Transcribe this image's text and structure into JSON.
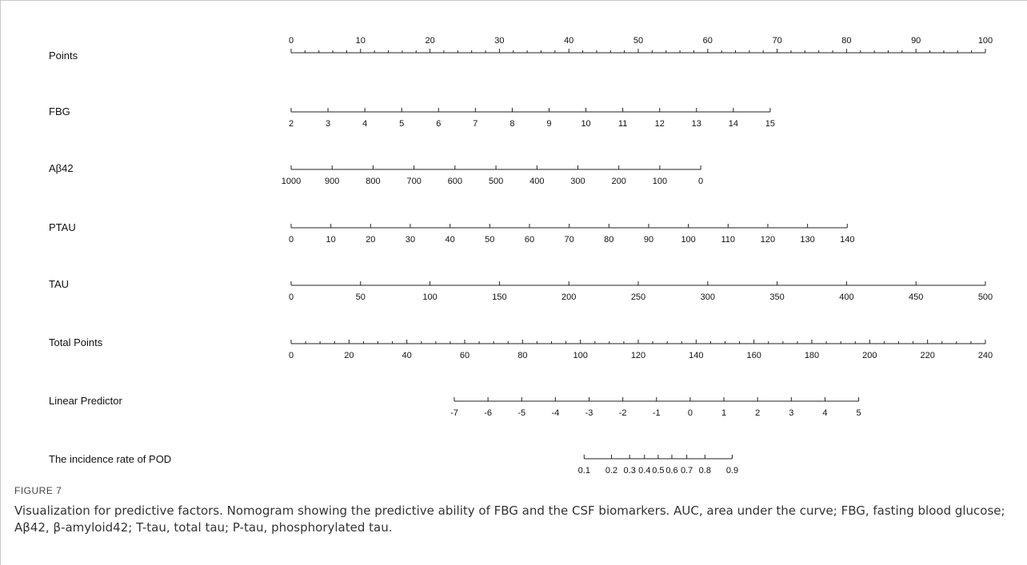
{
  "chart_data": {
    "type": "nomogram",
    "axes": [
      {
        "label": "Points",
        "ticks": [
          "0",
          "10",
          "20",
          "30",
          "40",
          "50",
          "60",
          "70",
          "80",
          "90",
          "100"
        ],
        "values": [
          0,
          10,
          20,
          30,
          40,
          50,
          60,
          70,
          80,
          90,
          100
        ],
        "minor_per_major": 5,
        "labels_above": true
      },
      {
        "label": "FBG",
        "ticks": [
          "2",
          "3",
          "4",
          "5",
          "6",
          "7",
          "8",
          "9",
          "10",
          "11",
          "12",
          "13",
          "14",
          "15"
        ],
        "points_at": [
          0,
          69
        ]
      },
      {
        "label": "Aβ42",
        "ticks": [
          "1000",
          "900",
          "800",
          "700",
          "600",
          "500",
          "400",
          "300",
          "200",
          "100",
          "0"
        ],
        "points_at": [
          0,
          59
        ]
      },
      {
        "label": "PTAU",
        "ticks": [
          "0",
          "10",
          "20",
          "30",
          "40",
          "50",
          "60",
          "70",
          "80",
          "90",
          "100",
          "110",
          "120",
          "130",
          "140"
        ],
        "points_at": [
          0,
          80.1
        ]
      },
      {
        "label": "TAU",
        "ticks": [
          "0",
          "50",
          "100",
          "150",
          "200",
          "250",
          "300",
          "350",
          "400",
          "450",
          "500"
        ],
        "points_at": [
          0,
          100
        ]
      },
      {
        "label": "Total Points",
        "ticks": [
          "0",
          "20",
          "40",
          "60",
          "80",
          "100",
          "120",
          "140",
          "160",
          "180",
          "200",
          "220",
          "240"
        ],
        "values": [
          0,
          20,
          40,
          60,
          80,
          100,
          120,
          140,
          160,
          180,
          200,
          220,
          240
        ],
        "minor_per_major": 4
      },
      {
        "label": "Linear Predictor",
        "ticks": [
          "-7",
          "-6",
          "-5",
          "-4",
          "-3",
          "-2",
          "-1",
          "0",
          "1",
          "2",
          "3",
          "4",
          "5"
        ],
        "values": [
          -7,
          -6,
          -5,
          -4,
          -3,
          -2,
          -1,
          0,
          1,
          2,
          3,
          4,
          5
        ],
        "total_points_at": [
          56.4,
          196.2
        ],
        "minor_per_major": 1
      },
      {
        "label": "The incidence rate of POD",
        "ticks": [
          "0.1",
          "0.2",
          "0.3",
          "0.4",
          "0.5",
          "0.6",
          "0.7",
          "0.8",
          "0.9"
        ],
        "values": [
          0.1,
          0.2,
          0.3,
          0.4,
          0.5,
          0.6,
          0.7,
          0.8,
          0.9
        ]
      }
    ]
  },
  "caption": {
    "label": "FIGURE 7",
    "text": "Visualization for predictive factors. Nomogram showing the predictive ability of FBG and the CSF biomarkers. AUC, area under the curve; FBG, fasting blood glucose; Aβ42, β-amyloid42; T-tau, total tau; P-tau, phosphorylated tau."
  }
}
